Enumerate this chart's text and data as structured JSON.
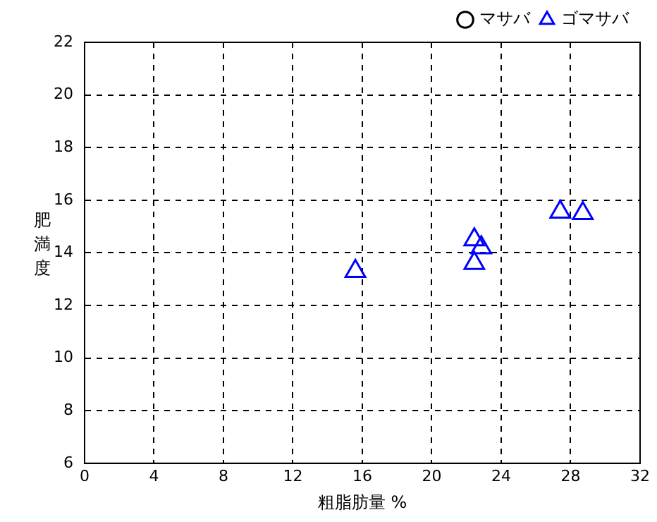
{
  "chart_data": {
    "type": "scatter",
    "xlabel": "粗脂肪量 %",
    "ylabel": "肥満度",
    "xlim": [
      0,
      32
    ],
    "xticks": [
      0,
      4,
      8,
      12,
      16,
      20,
      24,
      28,
      32
    ],
    "ylim": [
      6,
      22
    ],
    "yticks": [
      6,
      8,
      10,
      12,
      14,
      16,
      18,
      20,
      22
    ],
    "grid": true,
    "legend": "top right",
    "series": [
      {
        "name": "マサバ",
        "color": "#000000",
        "marker": "circle"
      },
      {
        "name": "ゴマサバ",
        "color": "#0000ff",
        "marker": "triangle",
        "x": [
          15.6,
          22.45,
          22.85,
          22.45,
          27.4,
          28.7
        ],
        "values": [
          13.3,
          14.5,
          14.2,
          13.6,
          15.55,
          15.5
        ]
      }
    ]
  }
}
